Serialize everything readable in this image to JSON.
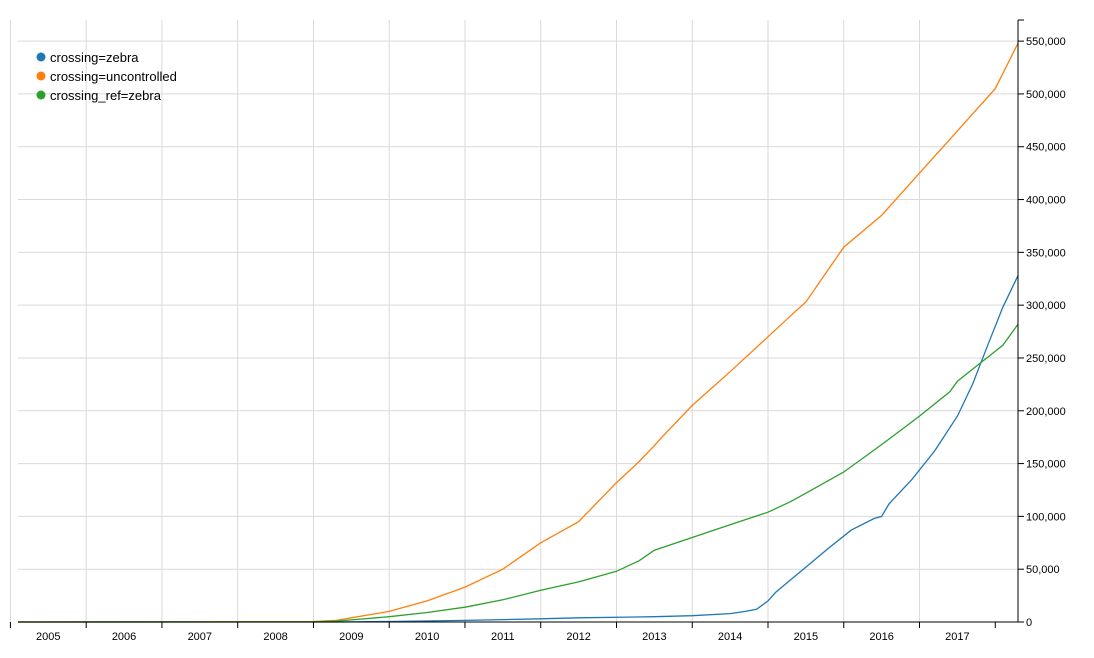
{
  "chart_data": {
    "type": "line",
    "title": "",
    "xlabel": "",
    "ylabel": "",
    "x_ticks": [
      "2005",
      "2006",
      "2007",
      "2008",
      "2009",
      "2010",
      "2011",
      "2012",
      "2013",
      "2014",
      "2015",
      "2016",
      "2017"
    ],
    "y_ticks": [
      "0",
      "50,000",
      "100,000",
      "150,000",
      "200,000",
      "250,000",
      "300,000",
      "350,000",
      "400,000",
      "450,000",
      "500,000",
      "550,000"
    ],
    "xlim": [
      2004.6,
      2017.8
    ],
    "ylim": [
      0,
      570000
    ],
    "grid": true,
    "y_axis_side": "right",
    "legend_placement": "top-left",
    "series": [
      {
        "name": "crossing=zebra",
        "color": "#1f77b4",
        "x": [
          2004.6,
          2008.8,
          2009.5,
          2010.5,
          2011.5,
          2012.0,
          2013.0,
          2013.5,
          2014.0,
          2014.2,
          2014.35,
          2014.5,
          2014.6,
          2014.8,
          2015.0,
          2015.3,
          2015.6,
          2015.9,
          2016.0,
          2016.1,
          2016.4,
          2016.7,
          2017.0,
          2017.2,
          2017.4,
          2017.6,
          2017.8
        ],
        "values": [
          0,
          0,
          500,
          1500,
          3000,
          4000,
          5000,
          6000,
          8000,
          10000,
          12000,
          20000,
          28000,
          40000,
          52000,
          70000,
          87000,
          98000,
          100000,
          112000,
          135000,
          162000,
          195000,
          225000,
          262000,
          298000,
          328000
        ]
      },
      {
        "name": "crossing=uncontrolled",
        "color": "#ff7f0e",
        "x": [
          2004.6,
          2008.5,
          2008.8,
          2009.0,
          2009.5,
          2010.0,
          2010.5,
          2011.0,
          2011.5,
          2012.0,
          2012.5,
          2012.8,
          2013.0,
          2013.1,
          2013.5,
          2014.0,
          2014.5,
          2014.8,
          2015.0,
          2015.5,
          2016.0,
          2016.5,
          2017.0,
          2017.5,
          2017.8
        ],
        "values": [
          0,
          500,
          1500,
          4000,
          10000,
          20000,
          33000,
          50000,
          75000,
          95000,
          132000,
          152000,
          167000,
          175000,
          205000,
          237000,
          270000,
          290000,
          303000,
          355000,
          385000,
          425000,
          465000,
          505000,
          548000
        ]
      },
      {
        "name": "crossing_ref=zebra",
        "color": "#2ca02c",
        "x": [
          2004.6,
          2008.5,
          2008.8,
          2009.0,
          2009.5,
          2010.0,
          2010.5,
          2011.0,
          2011.5,
          2012.0,
          2012.5,
          2012.8,
          2013.0,
          2013.5,
          2014.0,
          2014.5,
          2014.8,
          2015.0,
          2015.5,
          2016.0,
          2016.5,
          2016.9,
          2017.0,
          2017.3,
          2017.6,
          2017.8
        ],
        "values": [
          0,
          200,
          800,
          2000,
          5000,
          9000,
          14000,
          21000,
          30000,
          38000,
          48000,
          58000,
          68000,
          80000,
          92000,
          104000,
          114000,
          122000,
          142000,
          168000,
          195000,
          218000,
          228000,
          245000,
          262000,
          282000
        ]
      }
    ]
  }
}
